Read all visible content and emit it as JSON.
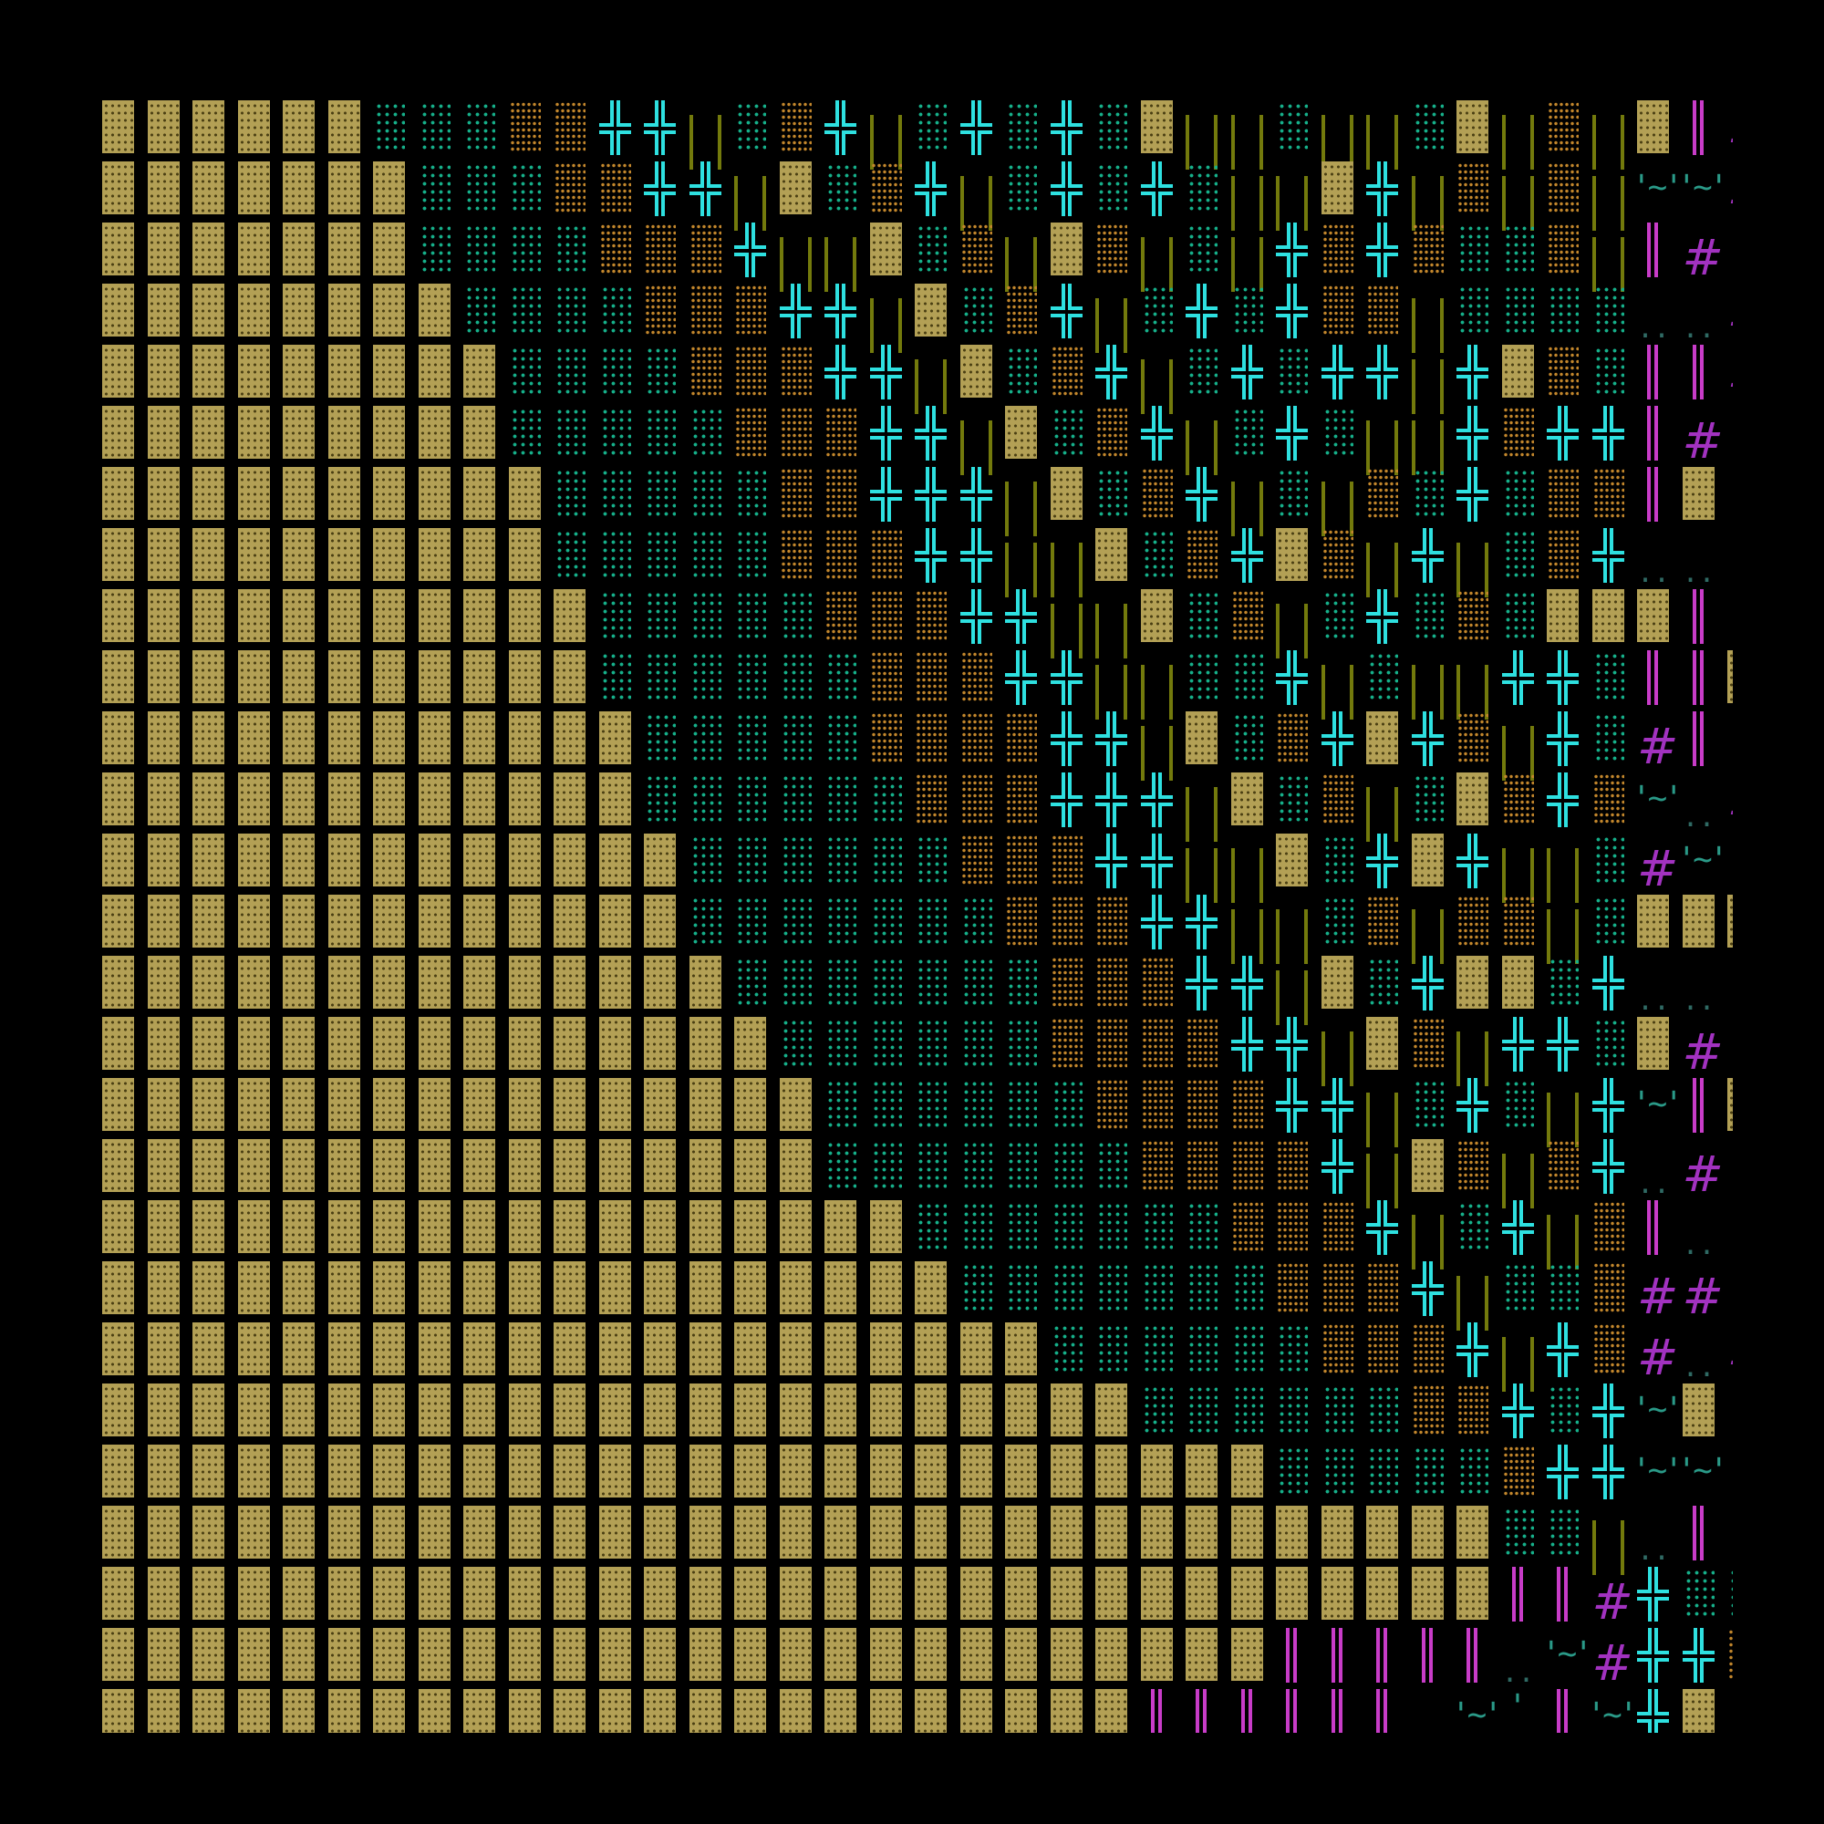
{
  "tiles": {
    "W": {
      "name": "wall",
      "color": "#b3a055"
    },
    "g": {
      "name": "green-dotted-floor",
      "color": "#16b08a"
    },
    "o": {
      "name": "orange-dotted-floor",
      "color": "#c2862c"
    },
    "+": {
      "name": "cross-junction",
      "glyph": "╬",
      "color": "#2ee0e0"
    },
    "|": {
      "name": "olive-pillar",
      "color": "#737a0c"
    },
    "M": {
      "name": "magenta-double-bar",
      "glyph": "‖",
      "color": "#c83cc8"
    },
    "#": {
      "name": "purple-hash",
      "glyph": "#",
      "color": "#a232c0"
    },
    "~": {
      "name": "water-wave",
      "glyph": "'~'",
      "color": "#2a9a88"
    },
    "'": {
      "name": "water-tick",
      "glyph": "'",
      "color": "#2a9a88"
    },
    ".": {
      "name": "dots",
      "glyph": "..",
      "color": "#2f6a64"
    }
  },
  "map": {
    "rows": [
      "WWWWWWgggoo++|go+|g+g+gW||g||gW|o|WM#",
      "WWWWWWWgggoo++|Wgo+|g+g+g||W+|o|o|~~#",
      "WWWWWWWggggooo+||Wgo|Wo|g|+o+oggo|M#'",
      "WWWWWWWWggggooo++|Wgo+|g+g+oo|gggg..#",
      "WWWWWWWWWggggooo++|Wgo+|g+g++|+WogMM#",
      "WWWWWWWWWgggggooo++|Wgo+|g+g||+o++M#.",
      "WWWWWWWWWWgggggoo+++|Wgo+|g|og+gooMW.",
      "WWWWWWWWWWgggggooo++||Wgo+Wo|+|go+...",
      "WWWWWWWWWWWgggggooo++||Wgo|g+gogWWWM'",
      "WWWWWWWWWWWggggggooo++||gg+|g||++gMMW",
      "WWWWWWWWWWWWgggggoooo++|Wgo+W+o|+g#M.",
      "WWWWWWWWWWWWggggggooo+++|Wgo|gWo+o~.#",
      "WWWWWWWWWWWWWggggggooo++||Wg+W+||g#~.",
      "WWWWWWWWWWWWWgggggggooo++||go|oo|gWWW",
      "WWWWWWWWWWWWWWgggggggooo++|Wg+WWg+..'",
      "WWWWWWWWWWWWWWWggggggoooo++|Wo|++gW#.",
      "WWWWWWWWWWWWWWWWggggggoooo++|g+g|+~MW",
      "WWWWWWWWWWWWWWWWgggggggoooo+|Wo|o+.#'",
      "WWWWWWWWWWWWWWWWWWgggggggooo+|g+|oM..",
      "WWWWWWWWWWWWWWWWWWWgggggggooo+|ggo## ",
      "WWWWWWWWWWWWWWWWWWWWWggggggooo+|+o#.#",
      "WWWWWWWWWWWWWWWWWWWWWWWggggggoo+g+~W'",
      "WWWWWWWWWWWWWWWWWWWWWWWWWWgggggo++~~.",
      "WWWWWWWWWWWWWWWWWWWWWWWWWWWWWWWgg|.M ",
      "WWWWWWWWWWWWWWWWWWWWWWWWWWWWWWWMM#+gg",
      "WWWWWWWWWWWWWWWWWWWWWWWWWWMMMMM.~#++o",
      "WWWWWWWWWWWWWWWWWWWWWWWMMMMMM ~'M~+W."
    ]
  }
}
